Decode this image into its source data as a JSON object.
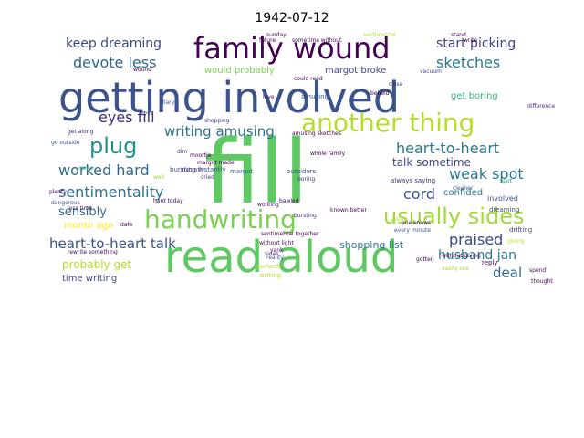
{
  "title": "1942-07-12",
  "words": [
    {
      "text": "getting involved",
      "color": "#3b528b"
    },
    {
      "text": "fill",
      "color": "#5ec962"
    },
    {
      "text": "read aloud",
      "color": "#5ec962"
    },
    {
      "text": "family wound",
      "color": "#440154"
    },
    {
      "text": "handwriting",
      "color": "#7ad151"
    },
    {
      "text": "another thing",
      "color": "#b5de2b"
    },
    {
      "text": "usually sides",
      "color": "#a0da39"
    },
    {
      "text": "plug",
      "color": "#21918c"
    },
    {
      "text": "heart-to-heart",
      "color": "#2a788e"
    },
    {
      "text": "keep dreaming",
      "color": "#3e4989"
    },
    {
      "text": "start picking",
      "color": "#414487"
    },
    {
      "text": "devote less",
      "color": "#31688e"
    },
    {
      "text": "sketches",
      "color": "#2a788e"
    },
    {
      "text": "eyes fill",
      "color": "#472d7b"
    },
    {
      "text": "writing amusing",
      "color": "#2c728e"
    },
    {
      "text": "worked hard",
      "color": "#31688e"
    },
    {
      "text": "weak spot",
      "color": "#2a788e"
    },
    {
      "text": "sentimentality",
      "color": "#2c728e"
    },
    {
      "text": "cord",
      "color": "#3b528b"
    },
    {
      "text": "heart-to-heart talk",
      "color": "#3b528b"
    },
    {
      "text": "praised",
      "color": "#3e4989"
    },
    {
      "text": "husband jan",
      "color": "#2a788e"
    },
    {
      "text": "sensibly",
      "color": "#31688e"
    },
    {
      "text": "talk sometime",
      "color": "#414487"
    },
    {
      "text": "confided",
      "color": "#2a788e"
    },
    {
      "text": "deal",
      "color": "#31688e"
    },
    {
      "text": "probably get",
      "color": "#b5de2b"
    },
    {
      "text": "shopping list",
      "color": "#2a788e"
    },
    {
      "text": "month ago",
      "color": "#fde725"
    },
    {
      "text": "time writing",
      "color": "#414487"
    },
    {
      "text": "would probably",
      "color": "#7ad151"
    },
    {
      "text": "margot broke",
      "color": "#414487"
    },
    {
      "text": "get boring",
      "color": "#35b779"
    },
    {
      "text": "margot",
      "color": "#31688e"
    },
    {
      "text": "come",
      "color": "#22a884"
    },
    {
      "text": "get along",
      "color": "#482878"
    },
    {
      "text": "plenty",
      "color": "#440154"
    },
    {
      "text": "less time",
      "color": "#482878"
    },
    {
      "text": "bursting instantly",
      "color": "#3b528b"
    },
    {
      "text": "shopping",
      "color": "#414487"
    },
    {
      "text": "diary",
      "color": "#3b528b"
    },
    {
      "text": "sentimental together",
      "color": "#440154"
    },
    {
      "text": "amusing sketches",
      "color": "#440154"
    },
    {
      "text": "always saying",
      "color": "#472d7b"
    },
    {
      "text": "outsiders",
      "color": "#3b528b"
    },
    {
      "text": "boring",
      "color": "#472d7b"
    },
    {
      "text": "bursting",
      "color": "#472d7b"
    },
    {
      "text": "hard today",
      "color": "#440154"
    },
    {
      "text": "involved",
      "color": "#3b528b"
    },
    {
      "text": "dreaming",
      "color": "#3b528b"
    },
    {
      "text": "drifting",
      "color": "#3e4989"
    },
    {
      "text": "spot",
      "color": "#21918c"
    },
    {
      "text": "reply",
      "color": "#440154"
    },
    {
      "text": "reality",
      "color": "#3b528b"
    },
    {
      "text": "dangerous",
      "color": "#3b528b"
    },
    {
      "text": "instantly",
      "color": "#472d7b"
    },
    {
      "text": "cried",
      "color": "#472d7b"
    },
    {
      "text": "whole family",
      "color": "#440154"
    },
    {
      "text": "eyes",
      "color": "#3b528b"
    },
    {
      "text": "could read",
      "color": "#440154"
    },
    {
      "text": "close",
      "color": "#414487"
    },
    {
      "text": "vacuum",
      "color": "#3e4989"
    },
    {
      "text": "wound",
      "color": "#440154"
    },
    {
      "text": "moortje",
      "color": "#440154"
    },
    {
      "text": "amusing",
      "color": "#3b528b"
    },
    {
      "text": "without light",
      "color": "#440154"
    },
    {
      "text": "perfectly",
      "color": "#b5de2b"
    },
    {
      "text": "writing",
      "color": "#bddf26"
    },
    {
      "text": "giving",
      "color": "#bddf26"
    },
    {
      "text": "without giving",
      "color": "#440154"
    },
    {
      "text": "easily see",
      "color": "#a0da39"
    },
    {
      "text": "every minute",
      "color": "#3b528b"
    },
    {
      "text": "future",
      "color": "#440154"
    },
    {
      "text": "sometime without",
      "color": "#440154"
    },
    {
      "text": "sentimental",
      "color": "#b5de2b"
    },
    {
      "text": "stand",
      "color": "#440154"
    },
    {
      "text": "write",
      "color": "#440154"
    },
    {
      "text": "gotten",
      "color": "#440154"
    },
    {
      "text": "aloud",
      "color": "#b5de2b"
    },
    {
      "text": "sides",
      "color": "#472d7b"
    },
    {
      "text": "yank",
      "color": "#440154"
    },
    {
      "text": "dim",
      "color": "#482878"
    },
    {
      "text": "love",
      "color": "#440154"
    },
    {
      "text": "go outside",
      "color": "#3b528b"
    },
    {
      "text": "cleaner",
      "color": "#3b528b"
    },
    {
      "text": "rewrite something",
      "color": "#440154"
    },
    {
      "text": "known better",
      "color": "#440154"
    },
    {
      "text": "one knows",
      "color": "#440154"
    },
    {
      "text": "beheld",
      "color": "#440154"
    },
    {
      "text": "difference",
      "color": "#482878"
    },
    {
      "text": "spend",
      "color": "#440154"
    },
    {
      "text": "working",
      "color": "#440154"
    },
    {
      "text": "bawled",
      "color": "#440154"
    },
    {
      "text": "margot made",
      "color": "#440154"
    },
    {
      "text": "well",
      "color": "#a0da39"
    },
    {
      "text": "date",
      "color": "#440154"
    },
    {
      "text": "thought",
      "color": "#440154"
    },
    {
      "text": "sunday",
      "color": "#440154"
    }
  ]
}
